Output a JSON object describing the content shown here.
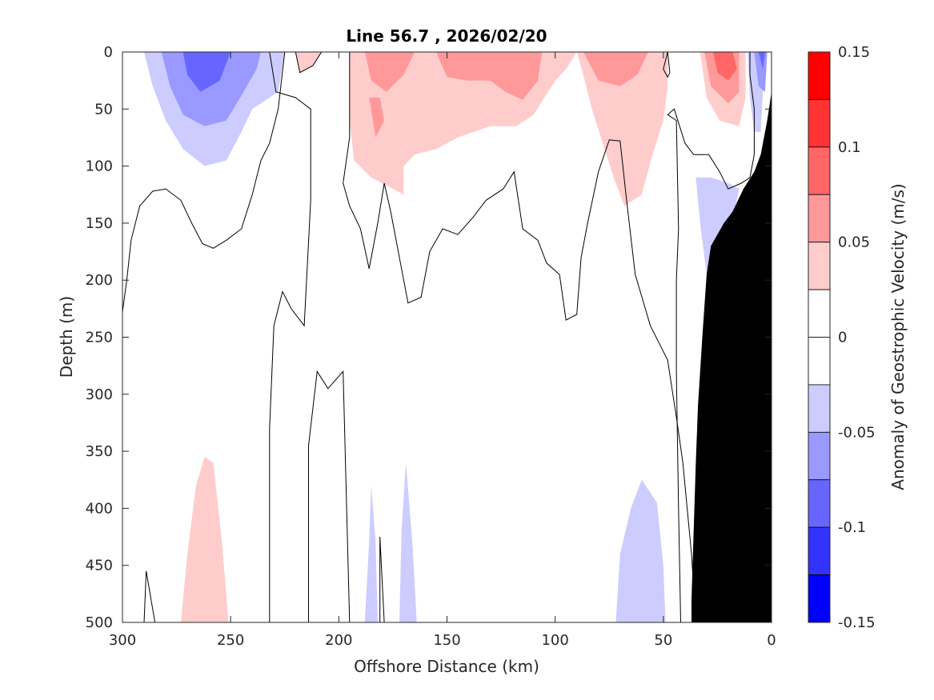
{
  "chart_data": {
    "type": "contour",
    "title": "Line 56.7 , 2026/02/20",
    "xlabel": "Offshore Distance (km)",
    "ylabel": "Depth (m)",
    "colorbar_label": "Anomaly of Geostrophic Velocity (m/s)",
    "xlim": [
      300,
      0
    ],
    "ylim": [
      0,
      500
    ],
    "x_reversed": true,
    "y_reversed": true,
    "xticks": [
      300,
      250,
      200,
      150,
      100,
      50,
      0
    ],
    "yticks": [
      0,
      50,
      100,
      150,
      200,
      250,
      300,
      350,
      400,
      450,
      500
    ],
    "colorbar": {
      "range": [
        -0.15,
        0.15
      ],
      "tick_values": [
        0.15,
        0.1,
        0.05,
        0,
        -0.05,
        -0.1,
        -0.15
      ],
      "tick_labels": [
        "0.15",
        "0.1",
        "0.05",
        "0",
        "-0.05",
        "-0.1",
        "-0.15"
      ],
      "levels": [
        {
          "from": 0.125,
          "to": 0.15,
          "color": "#ff0000"
        },
        {
          "from": 0.1,
          "to": 0.125,
          "color": "#ff3333"
        },
        {
          "from": 0.075,
          "to": 0.1,
          "color": "#ff6666"
        },
        {
          "from": 0.05,
          "to": 0.075,
          "color": "#ff9999"
        },
        {
          "from": 0.025,
          "to": 0.05,
          "color": "#ffcccc"
        },
        {
          "from": 0.0,
          "to": 0.025,
          "color": "#ffffff"
        },
        {
          "from": -0.025,
          "to": 0.0,
          "color": "#ffffff"
        },
        {
          "from": -0.05,
          "to": -0.025,
          "color": "#ccccff"
        },
        {
          "from": -0.075,
          "to": -0.05,
          "color": "#9999ff"
        },
        {
          "from": -0.1,
          "to": -0.075,
          "color": "#6666ff"
        },
        {
          "from": -0.125,
          "to": -0.1,
          "color": "#3333ff"
        },
        {
          "from": -0.15,
          "to": -0.125,
          "color": "#0000ff"
        }
      ]
    },
    "filled_regions": [
      {
        "level": -0.025,
        "color": "#ccccff",
        "points": [
          [
            290,
            0
          ],
          [
            286,
            30
          ],
          [
            280,
            60
          ],
          [
            272,
            85
          ],
          [
            262,
            100
          ],
          [
            252,
            95
          ],
          [
            245,
            70
          ],
          [
            240,
            50
          ],
          [
            228,
            35
          ],
          [
            225,
            0
          ]
        ]
      },
      {
        "level": -0.05,
        "color": "#9999ff",
        "points": [
          [
            282,
            0
          ],
          [
            278,
            30
          ],
          [
            272,
            55
          ],
          [
            262,
            65
          ],
          [
            252,
            60
          ],
          [
            245,
            38
          ],
          [
            238,
            15
          ],
          [
            236,
            0
          ]
        ]
      },
      {
        "level": -0.075,
        "color": "#6666ff",
        "points": [
          [
            272,
            0
          ],
          [
            270,
            20
          ],
          [
            264,
            35
          ],
          [
            255,
            25
          ],
          [
            250,
            0
          ]
        ]
      },
      {
        "level": 0.025,
        "color": "#ffcccc",
        "points": [
          [
            220,
            0
          ],
          [
            218,
            18
          ],
          [
            212,
            12
          ],
          [
            208,
            0
          ]
        ]
      },
      {
        "level": 0.025,
        "color": "#ffcccc",
        "points": [
          [
            195,
            0
          ],
          [
            195,
            60
          ],
          [
            193,
            95
          ],
          [
            185,
            110
          ],
          [
            180,
            115
          ],
          [
            175,
            120
          ],
          [
            170,
            125
          ],
          [
            170,
            100
          ],
          [
            165,
            90
          ],
          [
            155,
            85
          ],
          [
            145,
            75
          ],
          [
            130,
            65
          ],
          [
            118,
            65
          ],
          [
            110,
            55
          ],
          [
            100,
            25
          ],
          [
            95,
            15
          ],
          [
            90,
            0
          ]
        ]
      },
      {
        "level": 0.05,
        "color": "#ff9999",
        "points": [
          [
            188,
            0
          ],
          [
            185,
            25
          ],
          [
            178,
            35
          ],
          [
            170,
            20
          ],
          [
            165,
            0
          ]
        ]
      },
      {
        "level": 0.05,
        "color": "#ff9999",
        "points": [
          [
            186,
            40
          ],
          [
            183,
            75
          ],
          [
            179,
            60
          ],
          [
            181,
            40
          ]
        ]
      },
      {
        "level": 0.05,
        "color": "#ff9999",
        "points": [
          [
            155,
            0
          ],
          [
            150,
            22
          ],
          [
            140,
            25
          ],
          [
            130,
            25
          ],
          [
            123,
            35
          ],
          [
            115,
            42
          ],
          [
            108,
            25
          ],
          [
            106,
            0
          ]
        ]
      },
      {
        "level": 0.025,
        "color": "#ffcccc",
        "points": [
          [
            90,
            0
          ],
          [
            87,
            20
          ],
          [
            83,
            50
          ],
          [
            78,
            80
          ],
          [
            73,
            110
          ],
          [
            68,
            135
          ],
          [
            60,
            125
          ],
          [
            55,
            90
          ],
          [
            50,
            60
          ],
          [
            48,
            30
          ],
          [
            48,
            0
          ]
        ]
      },
      {
        "level": 0.05,
        "color": "#ff9999",
        "points": [
          [
            87,
            0
          ],
          [
            80,
            25
          ],
          [
            70,
            30
          ],
          [
            62,
            20
          ],
          [
            57,
            0
          ]
        ]
      },
      {
        "level": 0.025,
        "color": "#ffcccc",
        "points": [
          [
            33,
            0
          ],
          [
            30,
            40
          ],
          [
            24,
            60
          ],
          [
            15,
            65
          ],
          [
            12,
            40
          ],
          [
            12,
            0
          ]
        ]
      },
      {
        "level": 0.05,
        "color": "#ff9999",
        "points": [
          [
            31,
            0
          ],
          [
            28,
            30
          ],
          [
            20,
            45
          ],
          [
            15,
            35
          ],
          [
            15,
            0
          ]
        ]
      },
      {
        "level": 0.075,
        "color": "#ff6666",
        "points": [
          [
            27,
            0
          ],
          [
            25,
            18
          ],
          [
            20,
            25
          ],
          [
            16,
            15
          ],
          [
            18,
            0
          ]
        ]
      },
      {
        "level": -0.025,
        "color": "#ccccff",
        "points": [
          [
            11,
            0
          ],
          [
            10,
            40
          ],
          [
            8,
            70
          ],
          [
            5,
            70
          ],
          [
            3,
            0
          ]
        ]
      },
      {
        "level": -0.05,
        "color": "#9999ff",
        "points": [
          [
            8,
            0
          ],
          [
            6,
            30
          ],
          [
            3,
            35
          ],
          [
            2,
            0
          ]
        ]
      },
      {
        "level": -0.075,
        "color": "#6666ff",
        "points": [
          [
            6,
            0
          ],
          [
            4,
            15
          ],
          [
            3,
            0
          ]
        ]
      },
      {
        "level": -0.025,
        "color": "#ccccff",
        "points": [
          [
            35,
            110
          ],
          [
            33,
            150
          ],
          [
            30,
            195
          ],
          [
            27,
            240
          ],
          [
            25,
            245
          ],
          [
            23,
            250
          ],
          [
            18,
            150
          ],
          [
            15,
            120
          ],
          [
            20,
            115
          ],
          [
            28,
            110
          ]
        ]
      },
      {
        "level": 0.025,
        "color": "#ffcccc",
        "points": [
          [
            273,
            500
          ],
          [
            270,
            440
          ],
          [
            266,
            380
          ],
          [
            262,
            355
          ],
          [
            258,
            360
          ],
          [
            254,
            430
          ],
          [
            251,
            500
          ]
        ]
      },
      {
        "level": -0.025,
        "color": "#ccccff",
        "points": [
          [
            188,
            500
          ],
          [
            186,
            430
          ],
          [
            185,
            380
          ],
          [
            183,
            430
          ],
          [
            182,
            500
          ]
        ]
      },
      {
        "level": -0.025,
        "color": "#ccccff",
        "points": [
          [
            172,
            500
          ],
          [
            171,
            420
          ],
          [
            169,
            360
          ],
          [
            166,
            430
          ],
          [
            164,
            500
          ]
        ]
      },
      {
        "level": -0.025,
        "color": "#ccccff",
        "points": [
          [
            72,
            500
          ],
          [
            70,
            440
          ],
          [
            65,
            400
          ],
          [
            60,
            375
          ],
          [
            53,
            395
          ],
          [
            50,
            450
          ],
          [
            49,
            500
          ]
        ]
      }
    ],
    "contour_lines": [
      {
        "points": [
          [
            300,
            228
          ],
          [
            298,
            200
          ],
          [
            296,
            165
          ],
          [
            292,
            135
          ],
          [
            286,
            122
          ],
          [
            280,
            120
          ],
          [
            273,
            130
          ],
          [
            268,
            150
          ],
          [
            263,
            168
          ],
          [
            258,
            172
          ],
          [
            252,
            165
          ],
          [
            245,
            155
          ],
          [
            240,
            125
          ],
          [
            236,
            95
          ],
          [
            232,
            80
          ],
          [
            228,
            50
          ],
          [
            225,
            0
          ]
        ]
      },
      {
        "points": [
          [
            220,
            0
          ],
          [
            218,
            18
          ],
          [
            212,
            12
          ],
          [
            208,
            0
          ]
        ]
      },
      {
        "points": [
          [
            195,
            0
          ],
          [
            195,
            75
          ],
          [
            198,
            115
          ],
          [
            195,
            135
          ],
          [
            190,
            155
          ],
          [
            186,
            190
          ],
          [
            182,
            150
          ],
          [
            179,
            115
          ],
          [
            176,
            140
          ],
          [
            172,
            180
          ],
          [
            168,
            220
          ],
          [
            162,
            215
          ],
          [
            158,
            175
          ],
          [
            152,
            155
          ],
          [
            145,
            160
          ],
          [
            138,
            145
          ],
          [
            132,
            130
          ],
          [
            124,
            120
          ],
          [
            119,
            105
          ],
          [
            115,
            155
          ],
          [
            108,
            165
          ],
          [
            104,
            185
          ],
          [
            98,
            195
          ],
          [
            95,
            235
          ],
          [
            90,
            230
          ],
          [
            88,
            180
          ],
          [
            85,
            150
          ],
          [
            80,
            105
          ],
          [
            75,
            77
          ],
          [
            70,
            78
          ],
          [
            67,
            130
          ],
          [
            63,
            195
          ],
          [
            56,
            240
          ],
          [
            48,
            270
          ],
          [
            46,
            295
          ],
          [
            44,
            320
          ],
          [
            41,
            360
          ],
          [
            37,
            440
          ],
          [
            35,
            500
          ]
        ]
      },
      {
        "points": [
          [
            232,
            500
          ],
          [
            232,
            330
          ],
          [
            230,
            240
          ],
          [
            226,
            210
          ],
          [
            222,
            225
          ],
          [
            216,
            240
          ],
          [
            213,
            130
          ],
          [
            213,
            50
          ],
          [
            220,
            40
          ],
          [
            229,
            35
          ],
          [
            232,
            0
          ]
        ]
      },
      {
        "points": [
          [
            214,
            500
          ],
          [
            214,
            345
          ],
          [
            210,
            280
          ],
          [
            205,
            295
          ],
          [
            198,
            280
          ],
          [
            195,
            500
          ]
        ]
      },
      {
        "points": [
          [
            290,
            500
          ],
          [
            289,
            455
          ],
          [
            285,
            500
          ]
        ]
      },
      {
        "points": [
          [
            181,
            500
          ],
          [
            181,
            425
          ],
          [
            179,
            500
          ]
        ]
      },
      {
        "points": [
          [
            42,
            500
          ],
          [
            43,
            400
          ],
          [
            44,
            280
          ],
          [
            44,
            200
          ],
          [
            43,
            155
          ],
          [
            44,
            60
          ],
          [
            48,
            55
          ],
          [
            45,
            50
          ],
          [
            40,
            80
          ],
          [
            36,
            90
          ],
          [
            29,
            90
          ],
          [
            24,
            105
          ],
          [
            20,
            120
          ],
          [
            14,
            115
          ],
          [
            10,
            110
          ],
          [
            8,
            90
          ],
          [
            8,
            50
          ],
          [
            10,
            20
          ],
          [
            10,
            0
          ]
        ]
      },
      {
        "points": [
          [
            48,
            0
          ],
          [
            47,
            18
          ],
          [
            48,
            22
          ],
          [
            50,
            15
          ],
          [
            48,
            0
          ]
        ]
      },
      {
        "points": [
          [
            28,
            330
          ],
          [
            27,
            300
          ],
          [
            26,
            270
          ],
          [
            25,
            260
          ],
          [
            23,
            250
          ]
        ]
      }
    ],
    "land": {
      "color": "#000000",
      "points": [
        [
          0,
          500
        ],
        [
          0,
          35
        ],
        [
          2,
          60
        ],
        [
          5,
          90
        ],
        [
          8,
          105
        ],
        [
          13,
          120
        ],
        [
          18,
          140
        ],
        [
          22,
          150
        ],
        [
          28,
          170
        ],
        [
          30,
          195
        ],
        [
          32,
          250
        ],
        [
          34,
          310
        ],
        [
          35,
          360
        ],
        [
          36,
          420
        ],
        [
          37,
          480
        ],
        [
          37,
          500
        ]
      ]
    }
  }
}
